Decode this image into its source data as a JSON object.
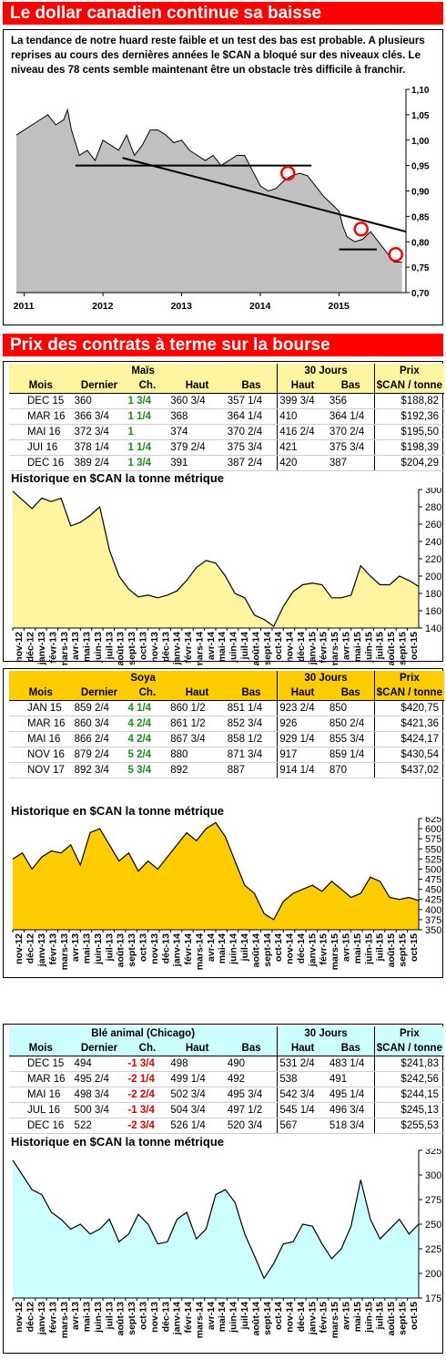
{
  "cad": {
    "title": "Le dollar canadien continue sa baisse",
    "text": "La tendance de notre huard reste faible et un test des bas est probable. A plusieurs reprises au cours des dernières années le $CAN a bloqué sur des niveaux clés. Le niveau des 78 cents semble maintenant être un obstacle très difficile à franchir.",
    "chart_data": {
      "type": "area",
      "x": [
        2010.9,
        2011.0,
        2011.1,
        2011.2,
        2011.3,
        2011.4,
        2011.5,
        2011.55,
        2011.6,
        2011.7,
        2011.8,
        2011.9,
        2012.0,
        2012.1,
        2012.2,
        2012.3,
        2012.4,
        2012.5,
        2012.6,
        2012.7,
        2012.8,
        2012.9,
        2013.0,
        2013.1,
        2013.2,
        2013.3,
        2013.4,
        2013.5,
        2013.6,
        2013.7,
        2013.8,
        2013.9,
        2014.0,
        2014.1,
        2014.2,
        2014.3,
        2014.4,
        2014.5,
        2014.6,
        2014.7,
        2014.8,
        2014.9,
        2015.0,
        2015.05,
        2015.1,
        2015.2,
        2015.3,
        2015.4,
        2015.5,
        2015.6,
        2015.7,
        2015.8
      ],
      "values": [
        1.01,
        1.02,
        1.03,
        1.04,
        1.05,
        1.03,
        1.04,
        1.06,
        1.02,
        0.97,
        0.98,
        0.96,
        1.0,
        0.99,
        0.98,
        1.01,
        0.97,
        0.99,
        1.02,
        1.02,
        1.01,
        0.995,
        1.0,
        0.98,
        0.97,
        0.96,
        0.97,
        0.95,
        0.96,
        0.97,
        0.97,
        0.94,
        0.91,
        0.9,
        0.905,
        0.92,
        0.93,
        0.935,
        0.93,
        0.91,
        0.89,
        0.875,
        0.86,
        0.83,
        0.81,
        0.8,
        0.805,
        0.82,
        0.8,
        0.78,
        0.76,
        0.76
      ],
      "xticks": [
        "2011",
        "2012",
        "2013",
        "2014",
        "2015"
      ],
      "xtick_values": [
        2011,
        2012,
        2013,
        2014,
        2015
      ],
      "yticks": [
        "0,70",
        "0,75",
        "0,80",
        "0,85",
        "0,90",
        "0,95",
        "1,00",
        "1,05",
        "1,10"
      ],
      "ylim": [
        0.7,
        1.1
      ],
      "xlim": [
        2010.9,
        2015.85
      ],
      "annotations": {
        "support_lines": [
          [
            2011.65,
            0.95,
            2014.65,
            0.95
          ],
          [
            2015.0,
            0.785,
            2015.48,
            0.785
          ]
        ],
        "trend_line": [
          2012.25,
          0.965,
          2015.85,
          0.82
        ],
        "circles": [
          [
            2014.35,
            0.935
          ],
          [
            2015.28,
            0.825
          ],
          [
            2015.72,
            0.775
          ]
        ]
      }
    }
  },
  "futures_title": "Prix des contrats à terme sur la bourse",
  "headers": {
    "mois": "Mois",
    "dernier": "Dernier",
    "ch": "Ch.",
    "haut": "Haut",
    "bas": "Bas",
    "jours": "30 Jours",
    "prix": "Prix",
    "unit": "$CAN / tonne"
  },
  "history_title": "Historique en $CAN la tonne métrique",
  "months": [
    "nov-12",
    "déc-12",
    "janv-13",
    "févr-13",
    "mars-13",
    "avr-13",
    "mai-13",
    "juin-13",
    "juil-13",
    "août-13",
    "sept-13",
    "oct-13",
    "nov-13",
    "déc-13",
    "janv-14",
    "févr-14",
    "mars-14",
    "avr-14",
    "mai-14",
    "juin-14",
    "juil-14",
    "août-14",
    "sept-14",
    "oct-14",
    "nov-14",
    "déc-14",
    "janv-15",
    "févr-15",
    "mars-15",
    "avr-15",
    "mai-15",
    "juin-15",
    "juil-15",
    "août-15",
    "sept-15",
    "oct-15"
  ],
  "mais": {
    "name": "Maïs",
    "rows": [
      {
        "mois": "DEC 15",
        "dernier": "360",
        "ch": "1 3/4",
        "haut": "360 3/4",
        "bas": "357 1/4",
        "h30": "399 3/4",
        "b30": "356",
        "prix": "$188,82"
      },
      {
        "mois": "MAR 16",
        "dernier": "366 3/4",
        "ch": "1 1/4",
        "haut": "368",
        "bas": "364 1/4",
        "h30": "410",
        "b30": "364 1/4",
        "prix": "$192,36"
      },
      {
        "mois": "MAI 16",
        "dernier": "372 3/4",
        "ch": "1",
        "haut": "374",
        "bas": "370 2/4",
        "h30": "416 2/4",
        "b30": "370 2/4",
        "prix": "$195,50"
      },
      {
        "mois": "JUI 16",
        "dernier": "378 1/4",
        "ch": "1 1/4",
        "haut": "379 2/4",
        "bas": "375 3/4",
        "h30": "421",
        "b30": "375 3/4",
        "prix": "$198,39"
      },
      {
        "mois": "DEC 16",
        "dernier": "389 2/4",
        "ch": "1 3/4",
        "haut": "391",
        "bas": "387 2/4",
        "h30": "420",
        "b30": "387",
        "prix": "$204,29"
      }
    ],
    "chart_data": {
      "type": "area",
      "ylim": [
        140,
        300
      ],
      "yticks": [
        "140",
        "160",
        "180",
        "200",
        "220",
        "240",
        "260",
        "280",
        "300"
      ],
      "values": [
        298,
        288,
        278,
        290,
        286,
        290,
        258,
        262,
        270,
        280,
        230,
        200,
        185,
        176,
        178,
        175,
        178,
        183,
        195,
        210,
        218,
        215,
        200,
        180,
        175,
        155,
        150,
        142,
        165,
        182,
        190,
        192,
        190,
        175,
        175,
        178,
        212,
        200,
        190,
        190,
        200,
        195,
        188
      ]
    }
  },
  "soya": {
    "name": "Soya",
    "rows": [
      {
        "mois": "JAN 15",
        "dernier": "859 2/4",
        "ch": "4 1/4",
        "haut": "860 1/2",
        "bas": "851 1/4",
        "h30": "923 2/4",
        "b30": "850",
        "prix": "$420,75"
      },
      {
        "mois": "MAR 16",
        "dernier": "860 3/4",
        "ch": "4 2/4",
        "haut": "861 1/2",
        "bas": "852 3/4",
        "h30": "926",
        "b30": "850 2/4",
        "prix": "$421,36"
      },
      {
        "mois": "MAI 16",
        "dernier": "866 2/4",
        "ch": "4 2/4",
        "haut": "867 3/4",
        "bas": "858 1/2",
        "h30": "929 1/4",
        "b30": "855 3/4",
        "prix": "$424,17"
      },
      {
        "mois": "NOV 16",
        "dernier": "879 2/4",
        "ch": "5 2/4",
        "haut": "880",
        "bas": "871 3/4",
        "h30": "917",
        "b30": "859 1/4",
        "prix": "$430,54"
      },
      {
        "mois": "NOV 17",
        "dernier": "892 3/4",
        "ch": "5 3/4",
        "haut": "892",
        "bas": "887",
        "h30": "914 1/4",
        "b30": "870",
        "prix": "$437,02"
      }
    ],
    "chart_data": {
      "type": "area",
      "ylim": [
        350,
        625
      ],
      "yticks": [
        "350",
        "375",
        "400",
        "425",
        "450",
        "475",
        "500",
        "525",
        "550",
        "575",
        "600",
        "625"
      ],
      "values": [
        525,
        540,
        500,
        530,
        545,
        540,
        560,
        510,
        590,
        600,
        560,
        520,
        540,
        495,
        520,
        500,
        530,
        560,
        590,
        570,
        600,
        615,
        580,
        520,
        460,
        440,
        390,
        375,
        420,
        440,
        450,
        460,
        445,
        470,
        450,
        430,
        440,
        480,
        470,
        430,
        425,
        430,
        422
      ]
    }
  },
  "ble": {
    "name": "Blé animal (Chicago)",
    "rows": [
      {
        "mois": "DEC 15",
        "dernier": "494",
        "ch": "-1 3/4",
        "haut": "498",
        "bas": "490",
        "h30": "531 2/4",
        "b30": "483 1/4",
        "prix": "$241,83"
      },
      {
        "mois": "MAR 16",
        "dernier": "495 2/4",
        "ch": "-2 1/4",
        "haut": "499 1/4",
        "bas": "492",
        "h30": "538",
        "b30": "491",
        "prix": "$242,56"
      },
      {
        "mois": "MAI 16",
        "dernier": "498 3/4",
        "ch": "-2 2/4",
        "haut": "502 3/4",
        "bas": "495 3/4",
        "h30": "542 3/4",
        "b30": "495 1/4",
        "prix": "$244,15"
      },
      {
        "mois": "JUL 16",
        "dernier": "500 3/4",
        "ch": "-1 3/4",
        "haut": "504 3/4",
        "bas": "497 1/2",
        "h30": "545 1/4",
        "b30": "496 3/4",
        "prix": "$245,13"
      },
      {
        "mois": "DEC 16",
        "dernier": "522",
        "ch": "-2 3/4",
        "haut": "526 1/4",
        "bas": "520 3/4",
        "h30": "567",
        "b30": "518 3/4",
        "prix": "$255,53"
      }
    ],
    "chart_data": {
      "type": "area",
      "ylim": [
        175,
        325
      ],
      "yticks": [
        "175",
        "200",
        "225",
        "250",
        "275",
        "300",
        "325"
      ],
      "values": [
        315,
        300,
        285,
        280,
        262,
        255,
        245,
        250,
        240,
        245,
        255,
        232,
        240,
        260,
        250,
        230,
        232,
        255,
        262,
        235,
        245,
        280,
        285,
        272,
        240,
        218,
        195,
        210,
        230,
        232,
        250,
        248,
        230,
        215,
        225,
        248,
        295,
        255,
        235,
        245,
        255,
        240,
        250
      ]
    }
  },
  "colors": {
    "banner": "#ff0000",
    "mais": "#fff5a0",
    "soya": "#ffcc00",
    "ble": "#ccffff",
    "cad_area": "#c0c0c0",
    "positive": "#1a8f1a",
    "negative": "#e00000"
  }
}
